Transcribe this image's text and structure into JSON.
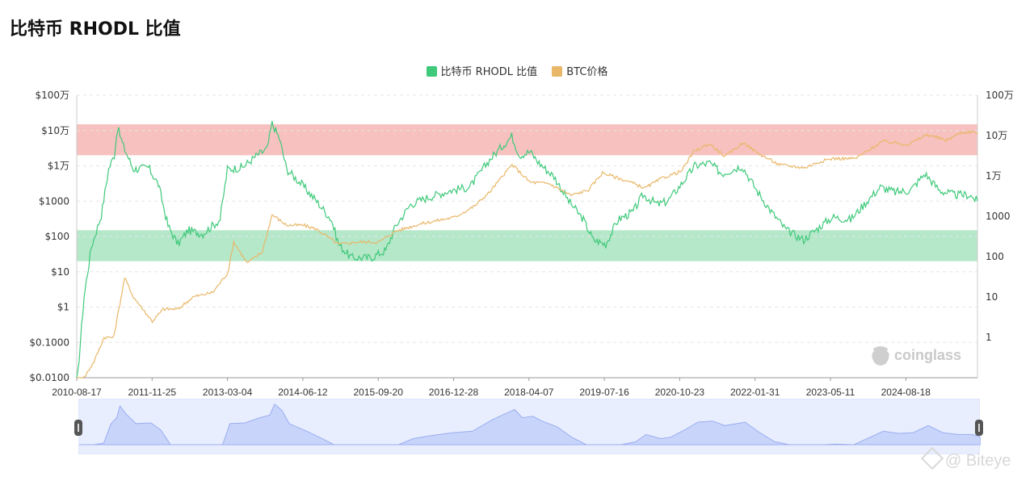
{
  "page": {
    "title": "比特币 RHODL 比值"
  },
  "legend": {
    "items": [
      {
        "label": "比特币 RHODL 比值",
        "color": "#3fc97a"
      },
      {
        "label": "BTC价格",
        "color": "#e9b768"
      }
    ]
  },
  "watermarks": {
    "coinglass": "coinglass",
    "biteye": "@ Biteye"
  },
  "chart_data": {
    "type": "line",
    "title": "比特币 RHODL 比值",
    "x_tick_labels": [
      "2010-08-17",
      "2011-11-25",
      "2013-03-04",
      "2014-06-12",
      "2015-09-20",
      "2016-12-28",
      "2018-04-07",
      "2019-07-16",
      "2020-10-23",
      "2022-01-31",
      "2023-05-11",
      "2024-08-18"
    ],
    "x_range": [
      "2010-08-17",
      "2025-10-20"
    ],
    "y_left": {
      "scale": "log",
      "range": [
        0.01,
        1000000
      ],
      "tick_values": [
        1000000,
        100000,
        10000,
        1000,
        100,
        10,
        1,
        0.1,
        0.01
      ],
      "tick_labels": [
        "$100万",
        "$10万",
        "$1万",
        "$1000",
        "$100",
        "$10",
        "$1",
        "$0.1000",
        "$0.0100"
      ]
    },
    "y_right": {
      "scale": "log",
      "range": [
        0.1,
        1000000
      ],
      "tick_values": [
        1000000,
        100000,
        10000,
        1000,
        100,
        10,
        1
      ],
      "tick_labels": [
        "100万",
        "10万",
        "1万",
        "1000",
        "100",
        "10",
        "1"
      ]
    },
    "bands": [
      {
        "axis": "left",
        "from": 20000,
        "to": 150000,
        "color": "#f7c1bf"
      },
      {
        "axis": "left",
        "from": 20,
        "to": 150,
        "color": "#b5e7c9"
      }
    ],
    "grid": true,
    "legend_position": "top-center",
    "series": [
      {
        "name": "比特币 RHODL 比值",
        "axis": "left",
        "color": "#3fc97a",
        "points": [
          [
            "2010-08-17",
            0.005
          ],
          [
            "2010-10-01",
            2
          ],
          [
            "2010-11-15",
            50
          ],
          [
            "2011-01-15",
            400
          ],
          [
            "2011-03-01",
            8000
          ],
          [
            "2011-04-05",
            20000
          ],
          [
            "2011-04-25",
            120000
          ],
          [
            "2011-06-01",
            35000
          ],
          [
            "2011-08-01",
            8000
          ],
          [
            "2011-11-01",
            9000
          ],
          [
            "2012-01-01",
            3000
          ],
          [
            "2012-03-01",
            200
          ],
          [
            "2012-05-01",
            60
          ],
          [
            "2012-07-01",
            150
          ],
          [
            "2012-10-01",
            120
          ],
          [
            "2013-01-15",
            300
          ],
          [
            "2013-03-01",
            8000
          ],
          [
            "2013-06-01",
            9000
          ],
          [
            "2013-09-01",
            20000
          ],
          [
            "2013-11-01",
            30000
          ],
          [
            "2013-12-01",
            160000
          ],
          [
            "2014-01-15",
            60000
          ],
          [
            "2014-03-01",
            8000
          ],
          [
            "2014-06-01",
            3000
          ],
          [
            "2014-09-01",
            1000
          ],
          [
            "2014-12-01",
            300
          ],
          [
            "2015-01-15",
            60
          ],
          [
            "2015-04-01",
            25
          ],
          [
            "2015-08-01",
            25
          ],
          [
            "2015-11-01",
            40
          ],
          [
            "2016-01-01",
            200
          ],
          [
            "2016-04-01",
            800
          ],
          [
            "2016-07-01",
            1200
          ],
          [
            "2016-12-01",
            2000
          ],
          [
            "2017-04-01",
            2500
          ],
          [
            "2017-08-01",
            15000
          ],
          [
            "2017-12-15",
            70000
          ],
          [
            "2018-02-01",
            20000
          ],
          [
            "2018-04-07",
            25000
          ],
          [
            "2018-06-01",
            12000
          ],
          [
            "2018-09-01",
            5000
          ],
          [
            "2018-12-01",
            1000
          ],
          [
            "2019-03-01",
            300
          ],
          [
            "2019-05-01",
            80
          ],
          [
            "2019-07-16",
            60
          ],
          [
            "2019-10-01",
            300
          ],
          [
            "2020-01-01",
            500
          ],
          [
            "2020-03-01",
            1500
          ],
          [
            "2020-06-01",
            800
          ],
          [
            "2020-08-01",
            1000
          ],
          [
            "2020-10-23",
            3000
          ],
          [
            "2021-01-15",
            10000
          ],
          [
            "2021-04-15",
            12000
          ],
          [
            "2021-07-01",
            6000
          ],
          [
            "2021-11-01",
            10000
          ],
          [
            "2022-01-31",
            2000
          ],
          [
            "2022-05-01",
            500
          ],
          [
            "2022-08-01",
            150
          ],
          [
            "2022-11-15",
            80
          ],
          [
            "2023-03-01",
            200
          ],
          [
            "2023-05-11",
            350
          ],
          [
            "2023-09-01",
            300
          ],
          [
            "2023-12-01",
            900
          ],
          [
            "2024-03-01",
            2500
          ],
          [
            "2024-06-01",
            1800
          ],
          [
            "2024-09-01",
            2000
          ],
          [
            "2024-12-01",
            6000
          ],
          [
            "2025-03-01",
            2000
          ],
          [
            "2025-06-01",
            1500
          ],
          [
            "2025-09-01",
            1500
          ],
          [
            "2025-10-20",
            1000
          ]
        ]
      },
      {
        "name": "BTC价格",
        "axis": "right",
        "color": "#e9b768",
        "points": [
          [
            "2010-08-17",
            0.07
          ],
          [
            "2010-10-01",
            0.1
          ],
          [
            "2010-12-01",
            0.25
          ],
          [
            "2011-02-01",
            1
          ],
          [
            "2011-04-01",
            1
          ],
          [
            "2011-06-08",
            30
          ],
          [
            "2011-08-01",
            10
          ],
          [
            "2011-11-25",
            2.5
          ],
          [
            "2012-02-01",
            5
          ],
          [
            "2012-05-01",
            5
          ],
          [
            "2012-08-01",
            10
          ],
          [
            "2012-12-01",
            13
          ],
          [
            "2013-03-04",
            40
          ],
          [
            "2013-04-09",
            230
          ],
          [
            "2013-07-01",
            70
          ],
          [
            "2013-10-01",
            130
          ],
          [
            "2013-12-01",
            1100
          ],
          [
            "2014-03-01",
            600
          ],
          [
            "2014-06-12",
            600
          ],
          [
            "2014-09-01",
            480
          ],
          [
            "2015-01-15",
            200
          ],
          [
            "2015-05-01",
            230
          ],
          [
            "2015-09-20",
            230
          ],
          [
            "2016-01-01",
            430
          ],
          [
            "2016-06-01",
            650
          ],
          [
            "2016-12-28",
            950
          ],
          [
            "2017-05-01",
            1800
          ],
          [
            "2017-08-01",
            4000
          ],
          [
            "2017-12-17",
            19000
          ],
          [
            "2018-04-07",
            7000
          ],
          [
            "2018-08-01",
            6500
          ],
          [
            "2018-12-15",
            3300
          ],
          [
            "2019-04-01",
            4500
          ],
          [
            "2019-06-26",
            12000
          ],
          [
            "2019-12-15",
            7000
          ],
          [
            "2020-03-13",
            5000
          ],
          [
            "2020-07-01",
            9000
          ],
          [
            "2020-10-23",
            13000
          ],
          [
            "2021-01-08",
            40000
          ],
          [
            "2021-04-14",
            63000
          ],
          [
            "2021-07-20",
            30000
          ],
          [
            "2021-11-10",
            68000
          ],
          [
            "2022-01-31",
            38000
          ],
          [
            "2022-06-18",
            19000
          ],
          [
            "2022-11-21",
            16000
          ],
          [
            "2023-03-01",
            23000
          ],
          [
            "2023-05-11",
            27000
          ],
          [
            "2023-10-01",
            27000
          ],
          [
            "2024-03-14",
            72000
          ],
          [
            "2024-08-18",
            60000
          ],
          [
            "2024-12-17",
            106000
          ],
          [
            "2025-04-08",
            76000
          ],
          [
            "2025-07-14",
            120000
          ],
          [
            "2025-10-06",
            125000
          ],
          [
            "2025-10-20",
            108000
          ]
        ]
      }
    ]
  }
}
